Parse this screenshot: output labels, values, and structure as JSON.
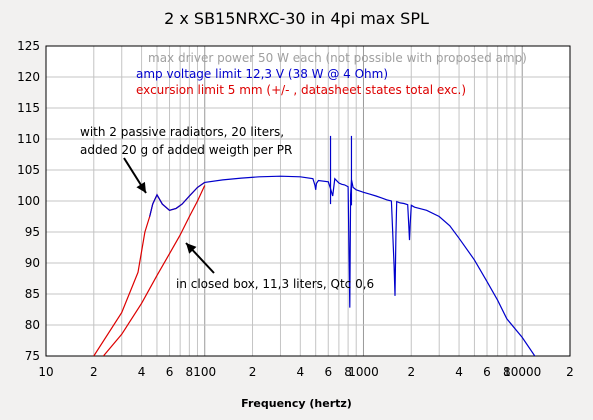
{
  "chart_data": {
    "type": "line",
    "title": "2 x SB15NRXC-30 in 4pi max SPL",
    "xlabel": "Frequency (hertz)",
    "ylabel": "",
    "xscale": "log",
    "xlim": [
      10,
      20000
    ],
    "ylim": [
      75,
      125
    ],
    "grid": true,
    "y_ticks": [
      "75",
      "80",
      "85",
      "90",
      "95",
      "100",
      "105",
      "110",
      "115",
      "120",
      "125"
    ],
    "x_ticks": [
      {
        "v": 10,
        "t": "10"
      },
      {
        "v": 20,
        "t": "2"
      },
      {
        "v": 40,
        "t": "4"
      },
      {
        "v": 60,
        "t": "6"
      },
      {
        "v": 80,
        "t": "8"
      },
      {
        "v": 100,
        "t": "100"
      },
      {
        "v": 200,
        "t": "2"
      },
      {
        "v": 400,
        "t": "4"
      },
      {
        "v": 600,
        "t": "6"
      },
      {
        "v": 800,
        "t": "8"
      },
      {
        "v": 1000,
        "t": "1000"
      },
      {
        "v": 2000,
        "t": "2"
      },
      {
        "v": 4000,
        "t": "4"
      },
      {
        "v": 6000,
        "t": "6"
      },
      {
        "v": 8000,
        "t": "8"
      },
      {
        "v": 10000,
        "t": "10000"
      },
      {
        "v": 20000,
        "t": "2"
      }
    ],
    "legend": {
      "placement": "top-right",
      "entries": [
        {
          "label": "max driver power 50 W each (not possible with proposed amp)",
          "color": "#a0a0a0"
        },
        {
          "label": "amp voltage limit 12,3 V (38 W @ 4 Ohm)",
          "color": "#0000cc"
        },
        {
          "label": "excursion limit 5 mm (+/- , datasheet states total exc.)",
          "color": "#dd0000"
        }
      ]
    },
    "annotations": [
      {
        "lines": [
          "with 2 passive radiators, 20 liters,",
          "added 20 g of added weigth per PR"
        ]
      },
      {
        "lines": [
          "in closed box, 11,3 liters, Qtc 0,6"
        ]
      }
    ],
    "series": [
      {
        "color": "#dd0000",
        "x": [
          20,
          30,
          38,
          42,
          45,
          47,
          50,
          54,
          60,
          66,
          72,
          80,
          90,
          100
        ],
        "y": [
          75,
          82,
          88.5,
          95,
          97.5,
          99.5,
          101,
          99.5,
          98.5,
          98.8,
          99.5,
          100.8,
          102.2,
          103
        ]
      },
      {
        "color": "#dd0000",
        "x": [
          23,
          30,
          40,
          50,
          60,
          70,
          80,
          90,
          100
        ],
        "y": [
          75,
          78.5,
          83.5,
          88,
          91.5,
          94.5,
          97.5,
          100,
          102.5
        ]
      },
      {
        "color": "#0000cc",
        "x": [
          45,
          47,
          50,
          54,
          60,
          66,
          72,
          80,
          90,
          100,
          130,
          170,
          220,
          300,
          400,
          480,
          495,
          500,
          505,
          520,
          600,
          620,
          640,
          660,
          700,
          730,
          760,
          800,
          820,
          830,
          840,
          860,
          900,
          950,
          1000,
          1100,
          1200,
          1300,
          1400,
          1500,
          1560,
          1580,
          1600,
          1620,
          1700,
          1800,
          1900,
          1930,
          1950,
          1970,
          2000,
          2100,
          2500,
          3000,
          3500,
          4000,
          5000,
          6000,
          7000,
          8000,
          10000,
          12000,
          13000
        ],
        "y": [
          97.5,
          99.5,
          101,
          99.5,
          98.5,
          98.8,
          99.5,
          100.8,
          102.2,
          103,
          103.4,
          103.7,
          103.9,
          104,
          103.9,
          103.6,
          102.5,
          101.8,
          102.8,
          103.3,
          103.1,
          102,
          100.8,
          103.6,
          102.9,
          102.7,
          102.6,
          102.3,
          82.8,
          101,
          103.4,
          102.2,
          101.8,
          101.6,
          101.4,
          101.1,
          100.8,
          100.5,
          100.2,
          100,
          89.5,
          84.7,
          94.3,
          99.9,
          99.7,
          99.6,
          99.4,
          96,
          93.7,
          96.3,
          99.3,
          99,
          98.5,
          97.5,
          96,
          94,
          90.5,
          87,
          84,
          81,
          78,
          75,
          74
        ]
      }
    ],
    "spikes": [
      {
        "x": 620,
        "y": [
          99.5,
          110.5
        ]
      },
      {
        "x": 840,
        "y": [
          99.3,
          110.5
        ]
      }
    ]
  }
}
